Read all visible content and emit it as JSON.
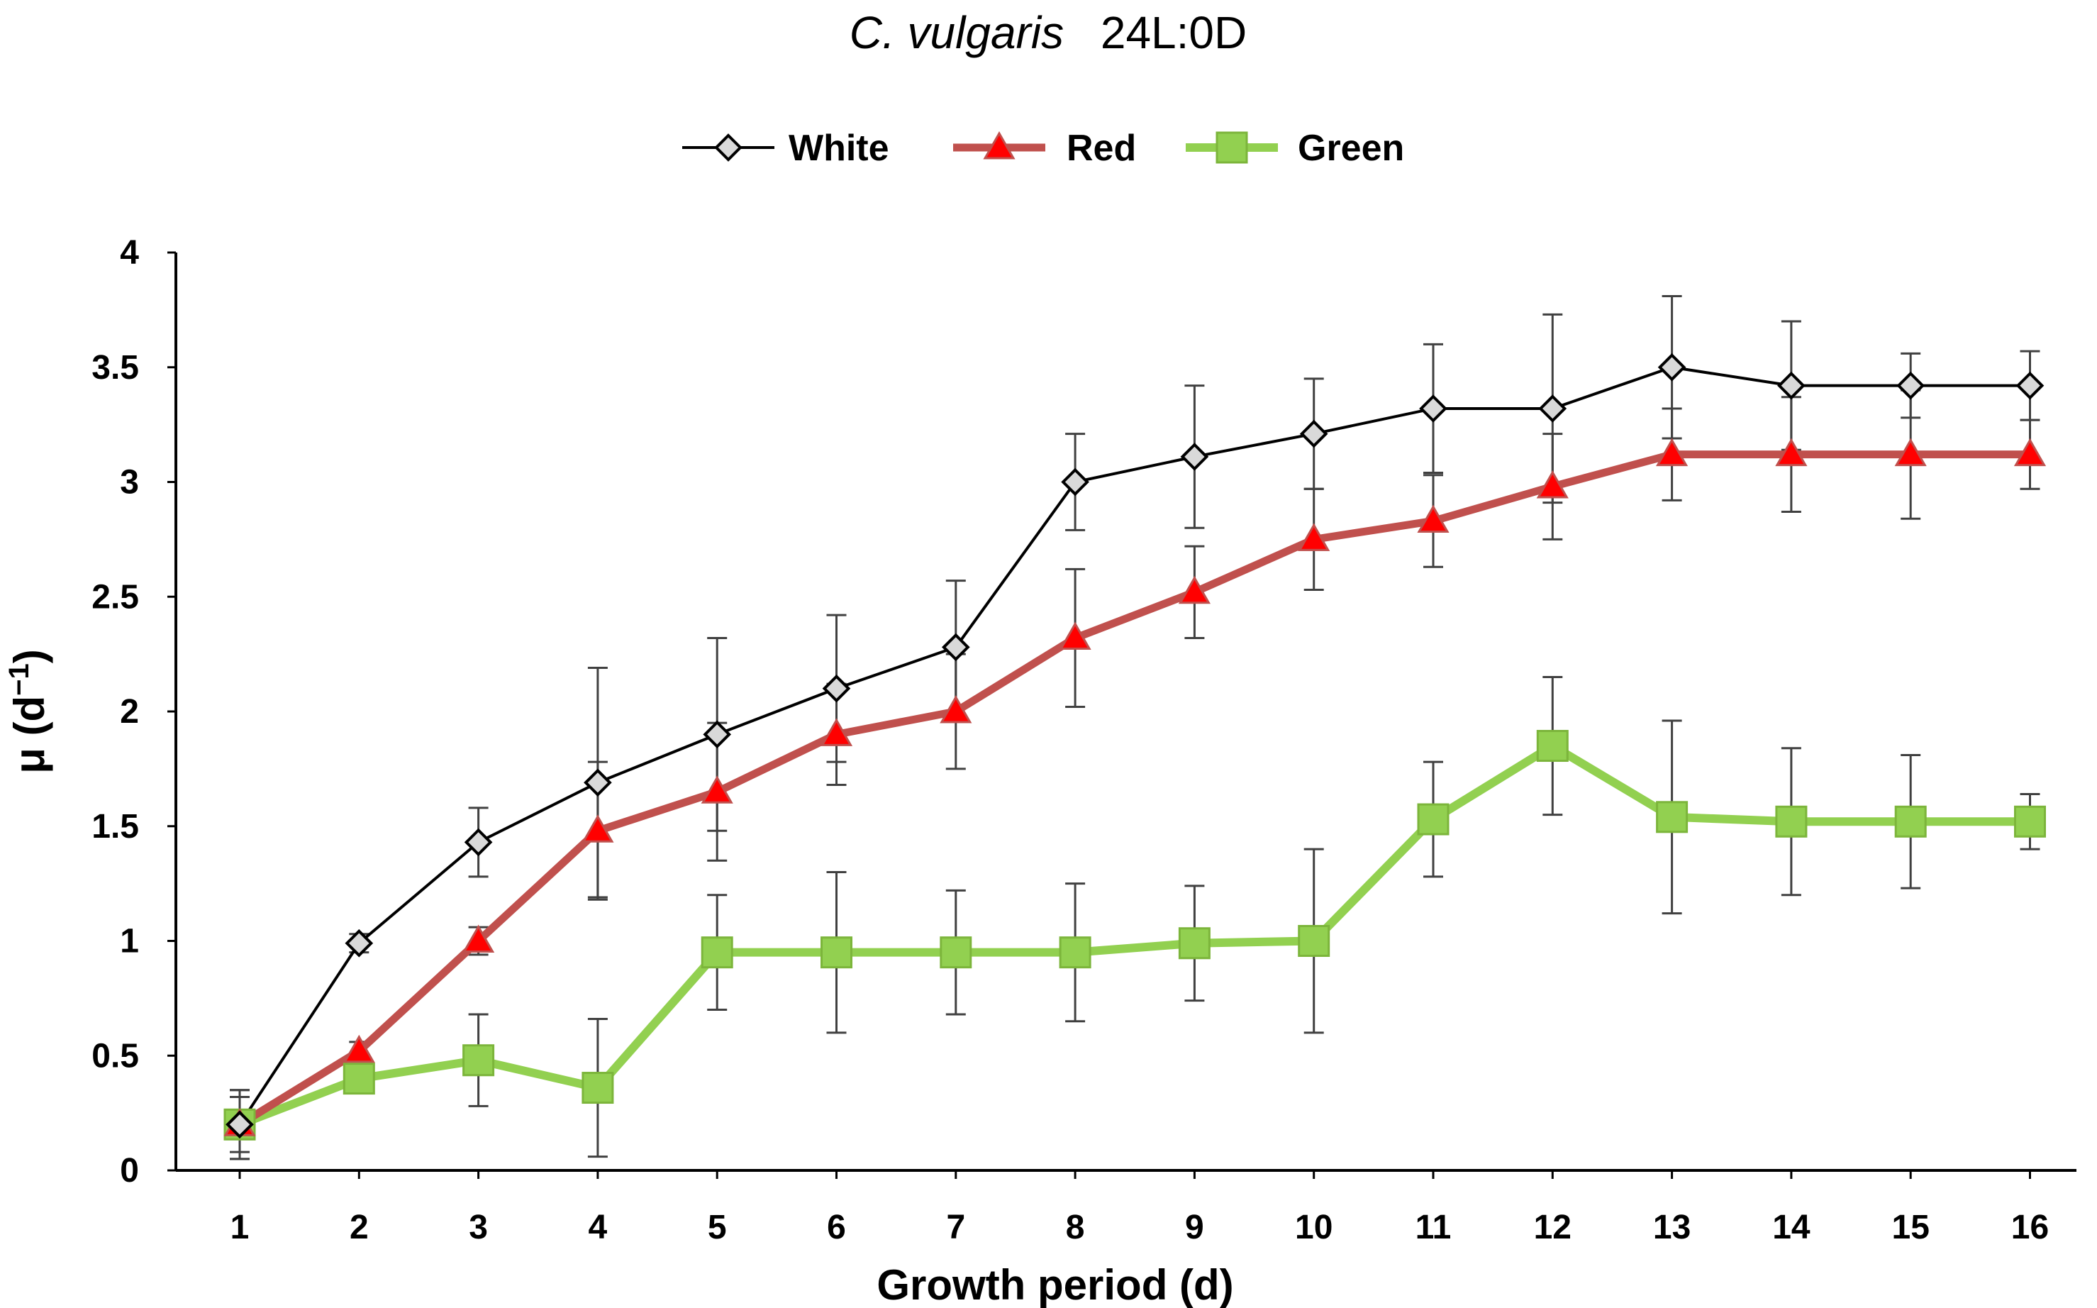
{
  "chart_data": {
    "type": "line",
    "title_species": "C. vulgaris",
    "title_condition": "24L:0D",
    "xlabel": "Growth period (d)",
    "ylabel_main": "μ (d",
    "ylabel_sup": "−1",
    "ylabel_close": ")",
    "ylim": [
      0,
      4
    ],
    "yticks": [
      0,
      0.5,
      1,
      1.5,
      2,
      2.5,
      3,
      3.5,
      4
    ],
    "ytick_labels": [
      "0",
      "0.5",
      "1",
      "1.5",
      "2",
      "2.5",
      "3",
      "3.5",
      "4"
    ],
    "x": [
      1,
      2,
      3,
      4,
      5,
      6,
      7,
      8,
      9,
      10,
      11,
      12,
      13,
      14,
      15,
      16
    ],
    "x_labels": [
      "1",
      "2",
      "3",
      "4",
      "5",
      "6",
      "7",
      "8",
      "9",
      "10",
      "11",
      "12",
      "13",
      "14",
      "15",
      "16"
    ],
    "legend_position": "top-center",
    "grid": false,
    "series": [
      {
        "name": "White",
        "color": "#000000",
        "marker": "diamond",
        "marker_fill": "#d9d9d9",
        "values": [
          0.2,
          0.99,
          1.43,
          1.69,
          1.9,
          2.1,
          2.28,
          3.0,
          3.11,
          3.21,
          3.32,
          3.32,
          3.5,
          3.42,
          3.42,
          3.42
        ],
        "errors": [
          0.15,
          0.04,
          0.15,
          0.5,
          0.42,
          0.32,
          0.29,
          0.21,
          0.31,
          0.24,
          0.28,
          0.41,
          0.31,
          0.28,
          0.14,
          0.15
        ]
      },
      {
        "name": "Red",
        "color": "#c0504d",
        "marker": "triangle",
        "marker_fill": "#ff0000",
        "values": [
          0.2,
          0.52,
          1.0,
          1.48,
          1.65,
          1.9,
          2.0,
          2.32,
          2.52,
          2.75,
          2.83,
          2.98,
          3.12,
          3.12,
          3.12,
          3.12
        ],
        "errors": [
          0.12,
          0.04,
          0.06,
          0.3,
          0.3,
          0.22,
          0.25,
          0.3,
          0.2,
          0.22,
          0.2,
          0.23,
          0.2,
          0.25,
          0.28,
          0.15
        ]
      },
      {
        "name": "Green",
        "color": "#92d050",
        "marker": "square",
        "marker_fill": "#92d050",
        "values": [
          0.2,
          0.4,
          0.48,
          0.36,
          0.95,
          0.95,
          0.95,
          0.95,
          0.99,
          1.0,
          1.53,
          1.85,
          1.54,
          1.52,
          1.52,
          1.52
        ],
        "errors": [
          0.15,
          0.05,
          0.2,
          0.3,
          0.25,
          0.35,
          0.27,
          0.3,
          0.25,
          0.4,
          0.25,
          0.3,
          0.42,
          0.32,
          0.29,
          0.12
        ]
      }
    ]
  }
}
